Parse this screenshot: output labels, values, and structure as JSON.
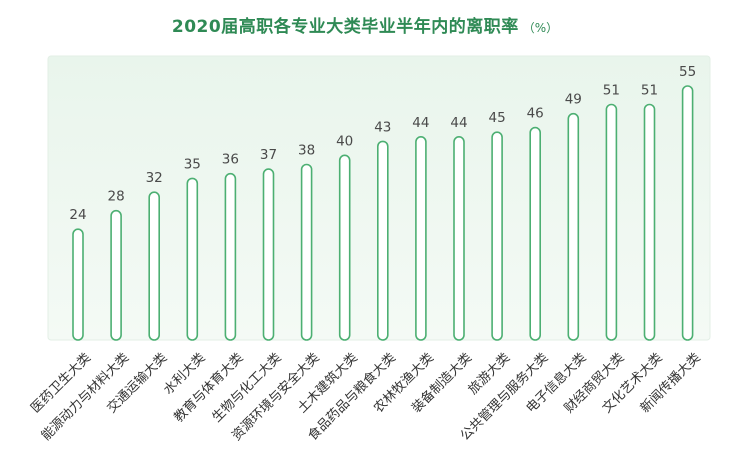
{
  "chart_data": {
    "type": "bar",
    "title": "2020届高职各专业大类毕业半年内的离职率",
    "unit": "（%）",
    "categories": [
      "医药卫生大类",
      "能源动力与材料大类",
      "交通运输大类",
      "水利大类",
      "教育与体育大类",
      "生物与化工大类",
      "资源环境与安全大类",
      "土木建筑大类",
      "食品药品与粮食大类",
      "农林牧渔大类",
      "装备制造大类",
      "旅游大类",
      "公共管理与服务大类",
      "电子信息大类",
      "财经商贸大类",
      "文化艺术大类",
      "新闻传播大类"
    ],
    "values": [
      24,
      28,
      32,
      35,
      36,
      37,
      38,
      40,
      43,
      44,
      44,
      45,
      46,
      49,
      51,
      51,
      55
    ],
    "ylim": [
      0,
      55
    ],
    "grid": false,
    "colors": {
      "title": "#2f8a55",
      "bar_stroke": "#4caf72",
      "bar_fill": "#ffffff",
      "plot_bg": "#eef6f0",
      "value_text": "#4a4a4a",
      "category_text": "#333333"
    }
  }
}
